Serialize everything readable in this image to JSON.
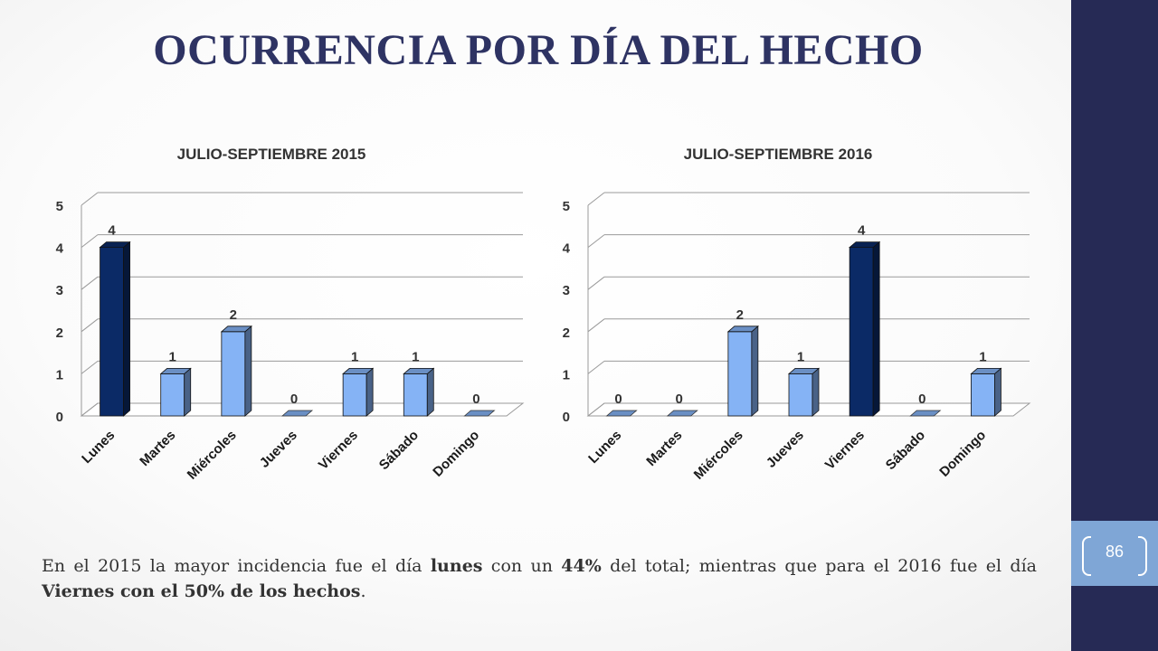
{
  "title": "OCURRENCIA POR DÍA DEL HECHO",
  "page_number": "86",
  "colors": {
    "highlight_bar": "#0b2a66",
    "regular_bar": "#85b3f5",
    "title_color": "#2e3363",
    "sidebar": "#262a55",
    "badge": "#7fa6d6"
  },
  "chart_data": [
    {
      "type": "bar",
      "title": "JULIO-SEPTIEMBRE 2015",
      "categories": [
        "Lunes",
        "Martes",
        "Miércoles",
        "Jueves",
        "Viernes",
        "Sábado",
        "Domingo"
      ],
      "values": [
        4,
        1,
        2,
        0,
        1,
        1,
        0
      ],
      "highlight_index": 0,
      "ylim": [
        0,
        5
      ],
      "yticks": [
        "0",
        "1",
        "2",
        "3",
        "4",
        "5"
      ],
      "grid": true,
      "data_labels": true,
      "style": "3d-column"
    },
    {
      "type": "bar",
      "title": "JULIO-SEPTIEMBRE 2016",
      "categories": [
        "Lunes",
        "Martes",
        "Miércoles",
        "Jueves",
        "Viernes",
        "Sábado",
        "Domingo"
      ],
      "values": [
        0,
        0,
        2,
        1,
        4,
        0,
        1
      ],
      "highlight_index": 4,
      "ylim": [
        0,
        5
      ],
      "yticks": [
        "0",
        "1",
        "2",
        "3",
        "4",
        "5"
      ],
      "grid": true,
      "data_labels": true,
      "style": "3d-column"
    }
  ],
  "footer": {
    "t1": "En el 2015 la mayor incidencia fue el día ",
    "b1": "lunes",
    "t2": " con un ",
    "b2": "44%",
    "t3": " del total; mientras que para el 2016 fue el día ",
    "b3": "Viernes con el 50% de los hechos",
    "t4": "."
  }
}
